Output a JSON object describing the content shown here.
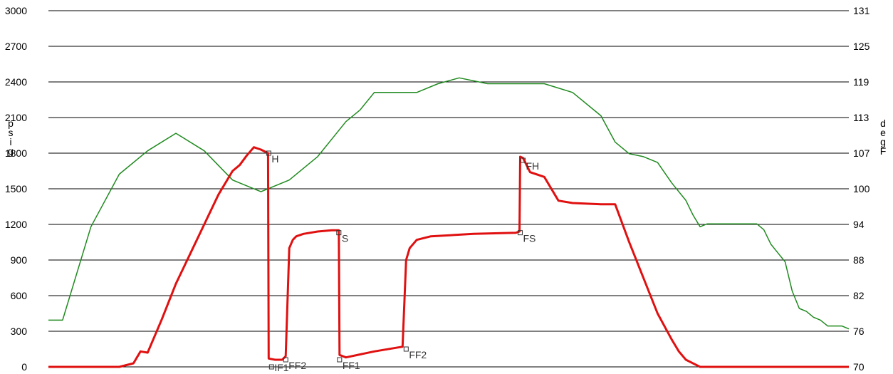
{
  "chart_data": {
    "type": "line",
    "left_axis": {
      "label": "psig",
      "min": 0,
      "max": 3000,
      "ticks": [
        0,
        300,
        600,
        900,
        1200,
        1500,
        1800,
        2100,
        2400,
        2700,
        3000
      ]
    },
    "right_axis": {
      "label": "degF",
      "min": 70,
      "max": 131,
      "ticks": [
        "70",
        "76",
        "82",
        "88",
        "94",
        "100",
        "107",
        "113",
        "119",
        "125",
        "131"
      ]
    },
    "grid": true,
    "series": [
      {
        "axis": "right",
        "color": "#1f8a1f",
        "x": [
          0,
          2,
          6,
          10,
          14,
          18,
          22,
          26,
          30,
          34,
          36,
          38,
          40,
          42,
          44,
          46,
          48,
          50,
          52,
          55,
          58,
          62,
          66,
          70,
          74,
          78,
          80,
          82,
          84,
          86,
          88,
          90,
          91,
          92,
          93,
          94,
          96,
          98,
          100,
          101,
          102,
          103,
          104,
          105,
          106,
          107,
          108,
          109,
          110,
          112,
          113
        ],
        "y": [
          78,
          78,
          94,
          103,
          107,
          110,
          107,
          102,
          100,
          102,
          104,
          106,
          109,
          112,
          114,
          117,
          117,
          117,
          117,
          118.5,
          119.5,
          118.5,
          118.5,
          118.5,
          117,
          113,
          108.5,
          106.5,
          106,
          105,
          101.5,
          98.5,
          96,
          94,
          94.5,
          94.5,
          94.5,
          94.5,
          94.5,
          93.5,
          91,
          89.5,
          88,
          83,
          80,
          79.5,
          78.5,
          78,
          77,
          77,
          76.5
        ]
      },
      {
        "axis": "left",
        "color": "#e01010",
        "x": [
          0,
          10,
          12,
          13,
          14,
          16,
          18,
          20,
          22,
          24,
          26,
          27,
          28,
          29,
          30,
          31,
          31.1,
          32,
          33,
          33.5,
          34,
          34.5,
          35,
          36,
          38,
          40,
          41,
          41.1,
          42,
          46,
          50,
          50.5,
          51,
          52,
          54,
          60,
          66,
          66.5,
          66.6,
          67,
          67.5,
          68,
          70,
          72,
          74,
          78,
          80,
          82,
          84,
          86,
          88,
          88.5,
          89,
          90,
          92,
          94,
          96,
          98,
          100,
          102,
          104,
          106,
          108,
          110,
          112,
          113
        ],
        "y": [
          0,
          0,
          30,
          130,
          120,
          400,
          700,
          950,
          1200,
          1450,
          1650,
          1700,
          1780,
          1850,
          1830,
          1800,
          70,
          60,
          60,
          90,
          1000,
          1070,
          1100,
          1120,
          1140,
          1150,
          1150,
          100,
          80,
          130,
          170,
          900,
          1000,
          1070,
          1100,
          1120,
          1130,
          1140,
          1770,
          1760,
          1700,
          1640,
          1600,
          1400,
          1380,
          1370,
          1370,
          1050,
          750,
          450,
          230,
          180,
          130,
          60,
          0,
          0,
          0,
          0,
          0,
          0,
          0,
          0,
          0,
          0,
          0,
          0
        ]
      }
    ],
    "markers": [
      {
        "label": "H",
        "x": 31.1,
        "y": 1800
      },
      {
        "label": "IF1",
        "x": 31.5,
        "y": 0
      },
      {
        "label": "FF2",
        "x": 33.5,
        "y": 60
      },
      {
        "label": "S",
        "x": 41,
        "y": 1130
      },
      {
        "label": "FF1",
        "x": 41.1,
        "y": 60
      },
      {
        "label": "FF2",
        "x": 50.5,
        "y": 150
      },
      {
        "label": "FH",
        "x": 67,
        "y": 1740
      },
      {
        "label": "FS",
        "x": 66.6,
        "y": 1130
      }
    ]
  }
}
